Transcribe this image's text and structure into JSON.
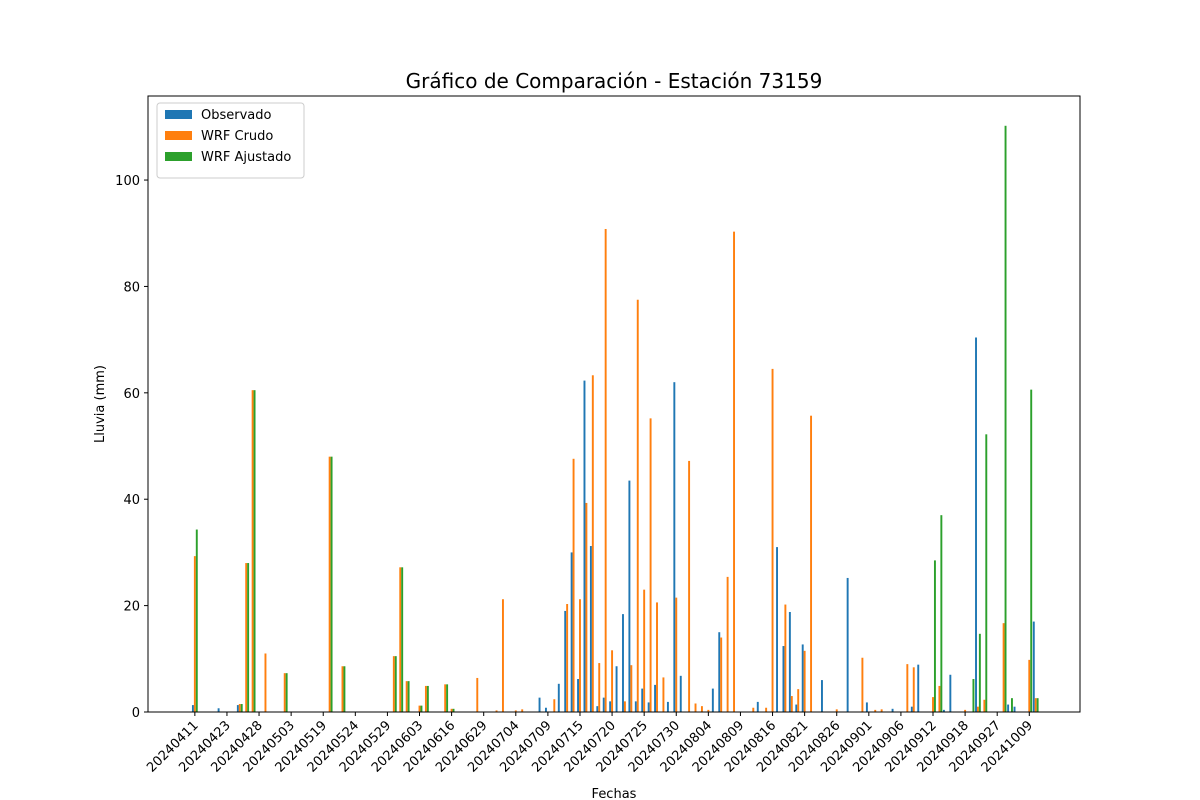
{
  "chart_data": {
    "type": "bar",
    "title": "Gráfico de Comparación - Estación 73159",
    "x_label": "Fechas",
    "y_label": "Lluvia (mm)",
    "categories": [
      "20240411",
      null,
      null,
      null,
      null,
      "20240423",
      null,
      null,
      null,
      null,
      "20240428",
      null,
      null,
      null,
      null,
      "20240503",
      null,
      null,
      null,
      null,
      "20240519",
      null,
      null,
      null,
      null,
      "20240524",
      null,
      null,
      null,
      null,
      "20240529",
      null,
      null,
      null,
      null,
      "20240603",
      null,
      null,
      null,
      null,
      "20240616",
      null,
      null,
      null,
      null,
      "20240629",
      null,
      null,
      null,
      null,
      "20240704",
      null,
      null,
      null,
      null,
      "20240709",
      null,
      null,
      null,
      null,
      "20240715",
      null,
      null,
      null,
      null,
      "20240720",
      null,
      null,
      null,
      null,
      "20240725",
      null,
      null,
      null,
      null,
      "20240730",
      null,
      null,
      null,
      null,
      "20240804",
      null,
      null,
      null,
      null,
      "20240809",
      null,
      null,
      null,
      null,
      "20240816",
      null,
      null,
      null,
      null,
      "20240821",
      null,
      null,
      null,
      null,
      "20240826",
      null,
      null,
      null,
      null,
      "20240901",
      null,
      null,
      null,
      null,
      "20240906",
      null,
      null,
      null,
      null,
      "20240912",
      null,
      null,
      null,
      null,
      "20240918",
      null,
      null,
      null,
      null,
      "20240927",
      null,
      null,
      null,
      null,
      "20241009",
      null
    ],
    "series": [
      {
        "name": "Observado",
        "color": "#1f77b4",
        "values": [
          1.3,
          0,
          0,
          0,
          0.7,
          0,
          0,
          1.3,
          0,
          0,
          0,
          0,
          0,
          0,
          0,
          0,
          0,
          0,
          0,
          0,
          0,
          0,
          0,
          0,
          0,
          0,
          0,
          0,
          0,
          0,
          0,
          0,
          0,
          0,
          0,
          0,
          0,
          0,
          0,
          0,
          0,
          0,
          0,
          0,
          0,
          0,
          0,
          0,
          0,
          0,
          0,
          0,
          0,
          0,
          2.7,
          0.8,
          0,
          5.3,
          19,
          30,
          6.2,
          62.3,
          31.2,
          1.1,
          2.7,
          2,
          8.6,
          18.4,
          43.5,
          2,
          4.4,
          1.8,
          5.1,
          0,
          1.9,
          62,
          6.8,
          0,
          0,
          0,
          0,
          4.4,
          15,
          0,
          0,
          0,
          0,
          0,
          1.9,
          0,
          0,
          31,
          12.4,
          18.8,
          1.4,
          12.7,
          0,
          0,
          6,
          0,
          0,
          0,
          25.2,
          0,
          0,
          1.8,
          0,
          0,
          0,
          0.6,
          0,
          0,
          1,
          8.9,
          0,
          0,
          0,
          0.4,
          7,
          0,
          0,
          0,
          70.4,
          0,
          0,
          0,
          0,
          1.4,
          1,
          0,
          0,
          17
        ]
      },
      {
        "name": "WRF Crudo",
        "color": "#ff7f0e",
        "values": [
          29.3,
          0,
          0,
          0,
          0,
          0,
          0,
          1.5,
          28,
          60.5,
          0,
          11,
          0,
          0,
          7.3,
          0,
          0,
          0,
          0,
          0,
          0,
          48,
          0,
          8.6,
          0,
          0,
          0,
          0,
          0,
          0,
          0,
          10.5,
          27.2,
          5.8,
          0,
          1.2,
          4.9,
          0,
          0,
          5.2,
          0.6,
          0,
          0,
          0,
          6.4,
          0,
          0,
          0.3,
          21.2,
          0,
          0.3,
          0.5,
          0,
          0,
          0,
          0,
          2.4,
          0,
          20.3,
          47.6,
          21.2,
          39.3,
          63.3,
          9.2,
          90.8,
          11.6,
          0,
          2,
          8.8,
          77.5,
          23,
          55.2,
          20.6,
          6.5,
          0,
          21.5,
          0,
          47.2,
          1.6,
          1.1,
          0.4,
          0,
          14,
          25.4,
          90.3,
          0,
          0,
          0.8,
          0,
          0.8,
          64.5,
          0,
          20.2,
          3,
          4.3,
          11.5,
          55.7,
          0,
          0,
          0,
          0.5,
          0,
          0,
          0,
          10.2,
          0,
          0.4,
          0.5,
          0,
          0,
          0,
          9,
          8.4,
          0,
          0,
          2.8,
          4.9,
          0,
          0,
          0,
          0.4,
          0,
          1,
          2.3,
          0,
          0,
          16.7,
          0,
          0,
          0,
          9.8,
          2.6
        ]
      },
      {
        "name": "WRF Ajustado",
        "color": "#2ca02c",
        "values": [
          34.3,
          0,
          0,
          0,
          0,
          0,
          0,
          1.5,
          28,
          60.5,
          0,
          0,
          0,
          0,
          7.3,
          0,
          0,
          0,
          0,
          0,
          0,
          48,
          0,
          8.6,
          0,
          0,
          0,
          0,
          0,
          0,
          0,
          10.5,
          27.2,
          5.8,
          0,
          1.2,
          4.9,
          0,
          0,
          5.2,
          0.6,
          0,
          0,
          0,
          0,
          0,
          0,
          0,
          0,
          0,
          0,
          0,
          0,
          0,
          0,
          0,
          0,
          0,
          0,
          0,
          0,
          0,
          0,
          0,
          0,
          0,
          0,
          0,
          0,
          0,
          0,
          0,
          0,
          0,
          0,
          0,
          0,
          0,
          0,
          0,
          0,
          0,
          0,
          0,
          0,
          0,
          0,
          0,
          0,
          0,
          0,
          0,
          0,
          0,
          0,
          0,
          0,
          0,
          0,
          0,
          0,
          0,
          0,
          0,
          0,
          0,
          0,
          0,
          0,
          0,
          0,
          0,
          0,
          0,
          0,
          28.5,
          37,
          0,
          0,
          0,
          0,
          6.2,
          14.7,
          52.2,
          0,
          0,
          110.2,
          2.6,
          0,
          0,
          60.6,
          2.6
        ]
      }
    ],
    "xlim": [
      -7.3,
      137.9
    ],
    "ylim": [
      0,
      115.8
    ],
    "yticks": [
      0,
      20,
      40,
      60,
      80,
      100
    ],
    "legend": "upper left",
    "grid": false
  }
}
